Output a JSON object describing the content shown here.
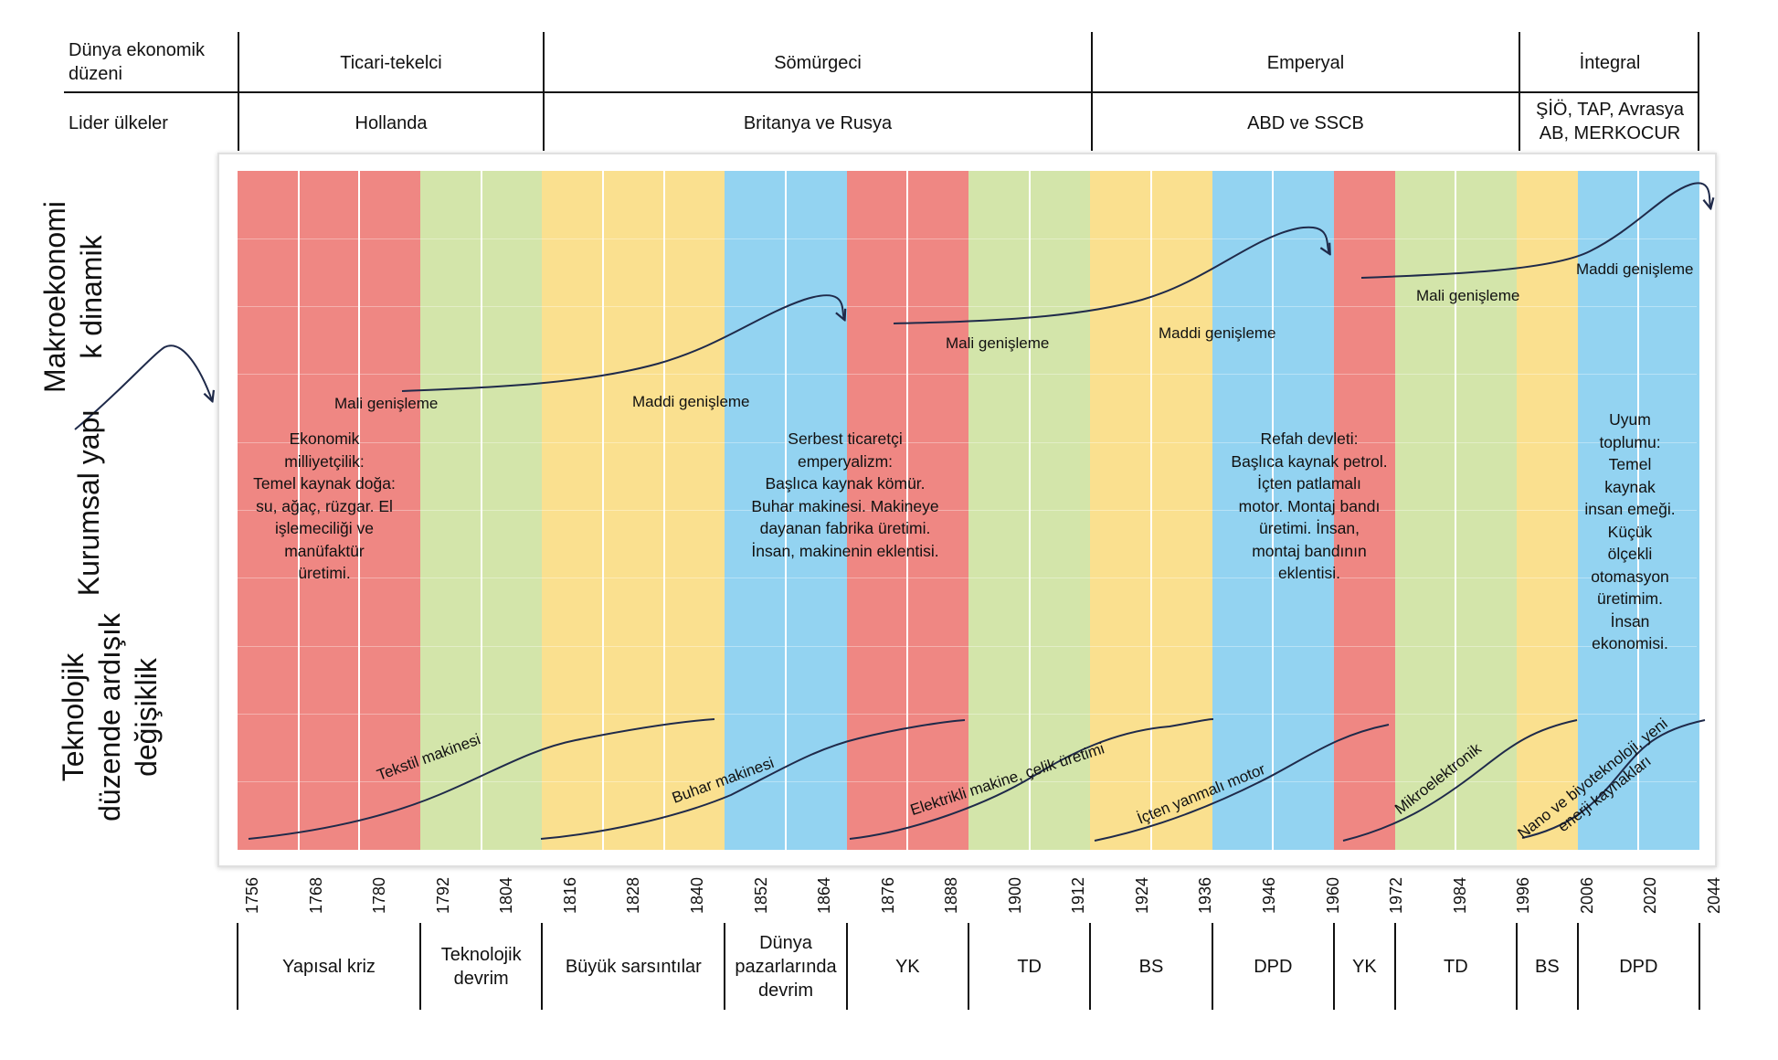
{
  "header": {
    "row1_label": "Dünya ekonomik düzeni",
    "row2_label": "Lider ülkeler",
    "orders": [
      "Ticari-tekelci",
      "Sömürgeci",
      "Emperyal",
      "İntegral"
    ],
    "leaders": [
      "Hollanda",
      "Britanya ve Rusya",
      "ABD ve SSCB",
      "ŞİÖ, TAP, Avrasya\nAB, MERKOCUR"
    ]
  },
  "axis_titles": {
    "macro": "Makroekonomi\nk dinamik",
    "institutional": "Kurumsal yapı",
    "technological": "Teknolojik\ndüzende ardışık\ndeğişiklik"
  },
  "colors": {
    "red": "#ef8783",
    "green": "#d3e5aa",
    "yellow": "#fae08f",
    "blue": "#93d3f1",
    "curve": "#1f2a4a"
  },
  "bands": [
    {
      "color": "red",
      "sub": 3
    },
    {
      "color": "green",
      "sub": 2
    },
    {
      "color": "yellow",
      "sub": 3
    },
    {
      "color": "blue",
      "sub": 2
    },
    {
      "color": "red",
      "sub": 2
    },
    {
      "color": "green",
      "sub": 2
    },
    {
      "color": "yellow",
      "sub": 2
    },
    {
      "color": "blue",
      "sub": 2
    },
    {
      "color": "red",
      "sub": 1
    },
    {
      "color": "green",
      "sub": 2
    },
    {
      "color": "yellow",
      "sub": 1
    },
    {
      "color": "blue",
      "sub": 2
    }
  ],
  "institutional_texts": [
    "Ekonomik\nmilliyetçilik:\nTemel kaynak doğa:\nsu, ağaç, rüzgar. El\nişlemeciliği ve\nmanüfaktür\nüretimi.",
    "Serbest ticaretçi\nemperyalizm:\nBaşlıca kaynak kömür.\nBuhar makinesi. Makineye\ndayanan fabrika üretimi.\nİnsan, makinenin eklentisi.",
    "Refah devleti:\nBaşlıca kaynak petrol.\nİçten patlamalı\nmotor. Montaj bandı\nüretimi. İnsan,\nmontaj bandının\neklentisi.",
    "Uyum\ntoplumu:\nTemel\nkaynak\ninsan emeği.\nKüçük\nölçekli\notomasyon\nüretimim.\nİnsan\nekonomisi."
  ],
  "macro_labels": [
    "Mali genişleme",
    "Maddi genişleme",
    "Mali genişleme",
    "Maddi genişleme",
    "Mali genişleme",
    "Maddi genişleme"
  ],
  "tech_labels": [
    "Tekstil makinesi",
    "Buhar makinesi",
    "Elektrikli makine, çelik üretimi",
    "İçten yanmalı motor",
    "Mikroelektronik",
    "Nano ve biyoteknoloji, yeni\nenerji kaynakları"
  ],
  "years": [
    "1756",
    "1768",
    "1780",
    "1792",
    "1804",
    "1816",
    "1828",
    "1840",
    "1852",
    "1864",
    "1876",
    "1888",
    "1900",
    "1912",
    "1924",
    "1936",
    "1946",
    "1960",
    "1972",
    "1984",
    "1996",
    "2006",
    "2020",
    "2044"
  ],
  "phases": [
    "Yapısal kriz",
    "Teknolojik\ndevrim",
    "Büyük sarsıntılar",
    "Dünya\npazarlarında\ndevrim",
    "YK",
    "TD",
    "BS",
    "DPD",
    "YK",
    "TD",
    "BS",
    "DPD"
  ]
}
